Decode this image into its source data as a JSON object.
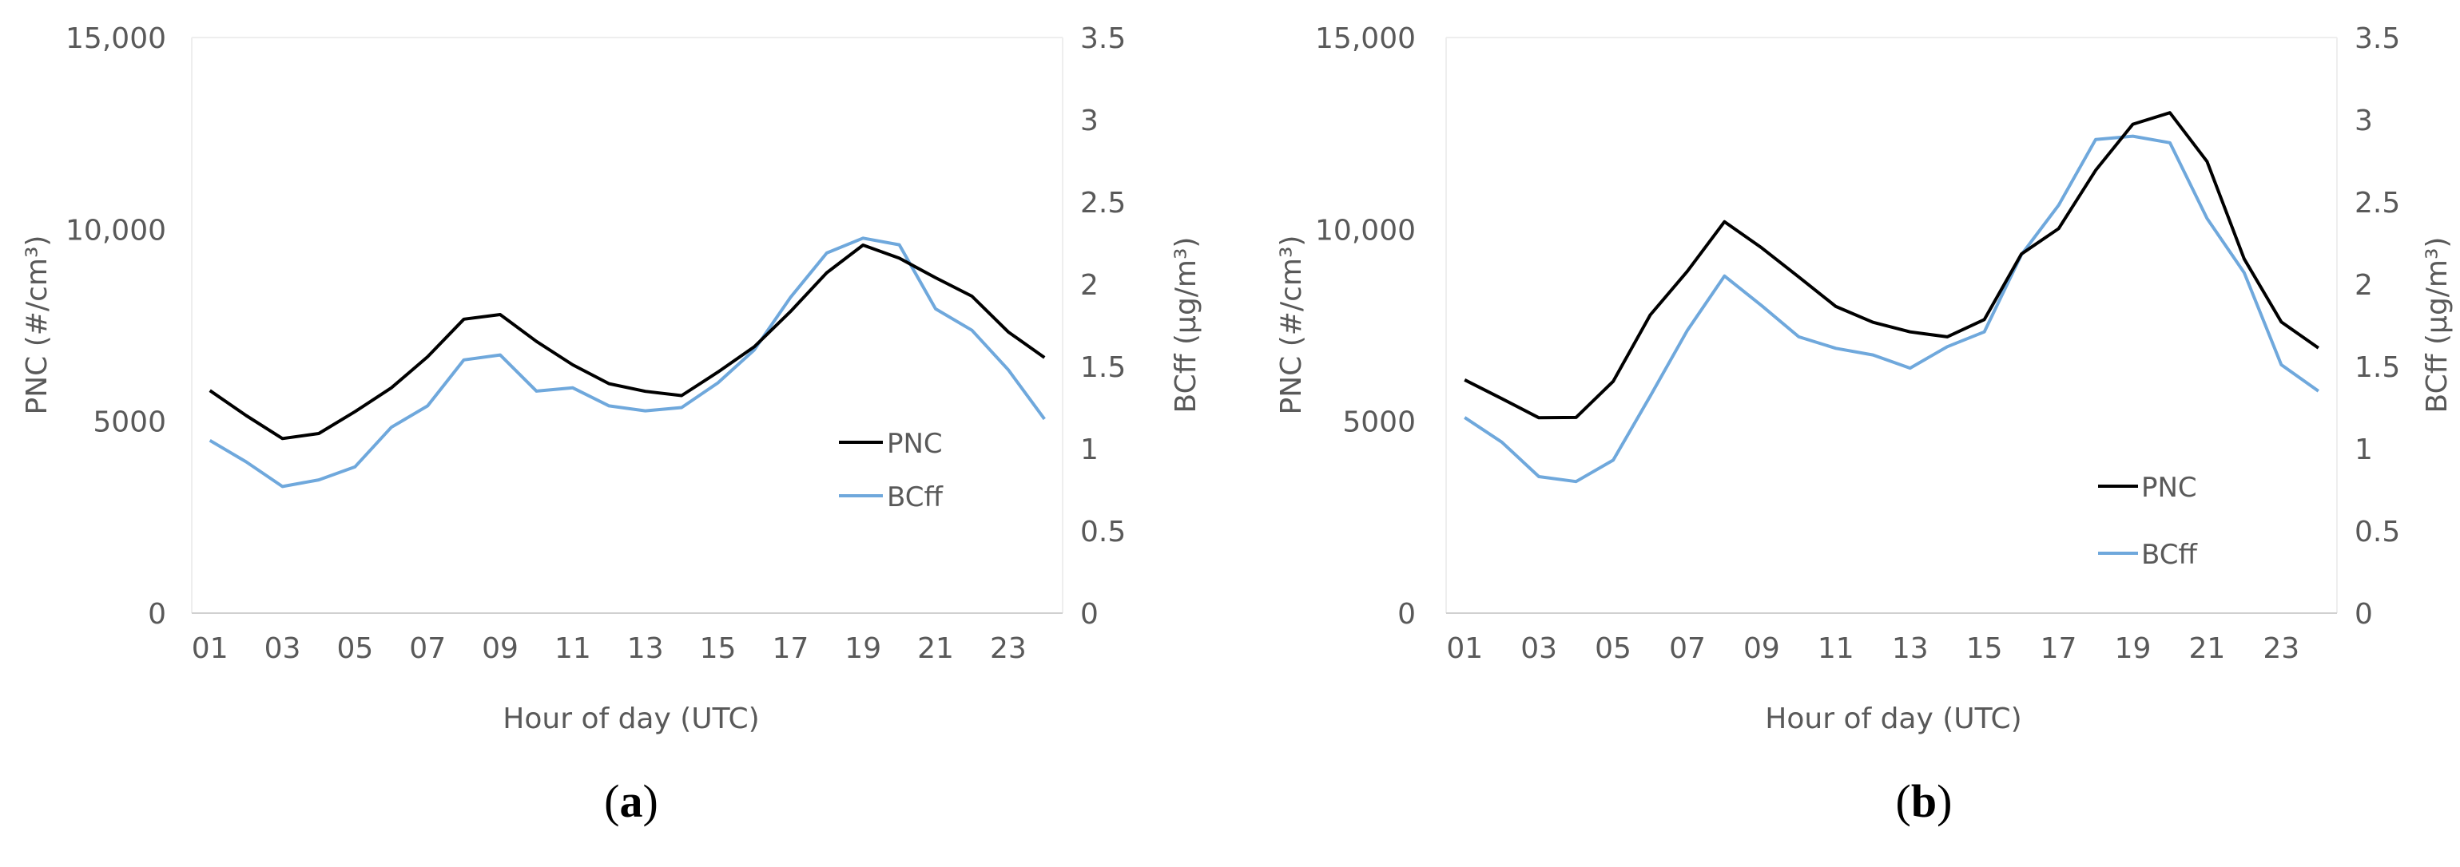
{
  "chart_data": [
    {
      "type": "line",
      "panel_label": "a",
      "xlabel": "Hour of day (UTC)",
      "ylabel_left": "PNC (#/cm³)",
      "ylabel_right": "BCff (µg/m³)",
      "ylim_left": [
        0,
        15000
      ],
      "ylim_right": [
        0,
        3.5
      ],
      "y_ticks_left": [
        "0",
        "5000",
        "10,000",
        "15,000"
      ],
      "y_ticks_right": [
        "0",
        "0.5",
        "1",
        "1.5",
        "2",
        "2.5",
        "3",
        "3.5"
      ],
      "x_ticks": [
        "01",
        "03",
        "05",
        "07",
        "09",
        "11",
        "13",
        "15",
        "17",
        "19",
        "21",
        "23"
      ],
      "x": [
        1,
        2,
        3,
        4,
        5,
        6,
        7,
        8,
        9,
        10,
        11,
        12,
        13,
        14,
        15,
        16,
        17,
        18,
        19,
        20,
        21,
        22,
        23,
        24
      ],
      "legend_position": "bottom-right",
      "series": [
        {
          "name": "PNC",
          "axis": "left",
          "color": "#000000",
          "values": [
            5800,
            5150,
            4550,
            4680,
            5250,
            5870,
            6680,
            7660,
            7780,
            7080,
            6470,
            5980,
            5780,
            5670,
            6280,
            6940,
            7860,
            8870,
            9590,
            9250,
            8740,
            8260,
            7330,
            6660
          ]
        },
        {
          "name": "BCff",
          "axis": "right",
          "color": "#6FA8DC",
          "values": [
            1.05,
            0.92,
            0.77,
            0.81,
            0.89,
            1.13,
            1.26,
            1.54,
            1.57,
            1.35,
            1.37,
            1.26,
            1.23,
            1.25,
            1.4,
            1.6,
            1.92,
            2.19,
            2.28,
            2.24,
            1.85,
            1.72,
            1.48,
            1.18
          ]
        }
      ]
    },
    {
      "type": "line",
      "panel_label": "b",
      "xlabel": "Hour of day (UTC)",
      "ylabel_left": "PNC (#/cm³)",
      "ylabel_right": "BCff (µg/m³)",
      "ylim_left": [
        0,
        15000
      ],
      "ylim_right": [
        0,
        3.5
      ],
      "y_ticks_left": [
        "0",
        "5000",
        "10,000",
        "15,000"
      ],
      "y_ticks_right": [
        "0",
        "0.5",
        "1",
        "1.5",
        "2",
        "2.5",
        "3",
        "3.5"
      ],
      "x_ticks": [
        "01",
        "03",
        "05",
        "07",
        "09",
        "11",
        "13",
        "15",
        "17",
        "19",
        "21",
        "23"
      ],
      "x": [
        1,
        2,
        3,
        4,
        5,
        6,
        7,
        8,
        9,
        10,
        11,
        12,
        13,
        14,
        15,
        16,
        17,
        18,
        19,
        20,
        21,
        22,
        23,
        24
      ],
      "legend_position": "bottom-right",
      "series": [
        {
          "name": "PNC",
          "axis": "left",
          "color": "#000000",
          "values": [
            6080,
            5590,
            5090,
            5100,
            6040,
            7770,
            8910,
            10200,
            9520,
            8760,
            7990,
            7580,
            7330,
            7200,
            7650,
            9360,
            10020,
            11540,
            12740,
            13040,
            11770,
            9230,
            7590,
            6910
          ]
        },
        {
          "name": "BCff",
          "axis": "right",
          "color": "#6FA8DC",
          "values": [
            1.19,
            1.04,
            0.83,
            0.8,
            0.93,
            1.32,
            1.72,
            2.05,
            1.87,
            1.68,
            1.61,
            1.57,
            1.49,
            1.62,
            1.71,
            2.18,
            2.48,
            2.88,
            2.9,
            2.86,
            2.4,
            2.07,
            1.51,
            1.35
          ]
        }
      ]
    }
  ]
}
